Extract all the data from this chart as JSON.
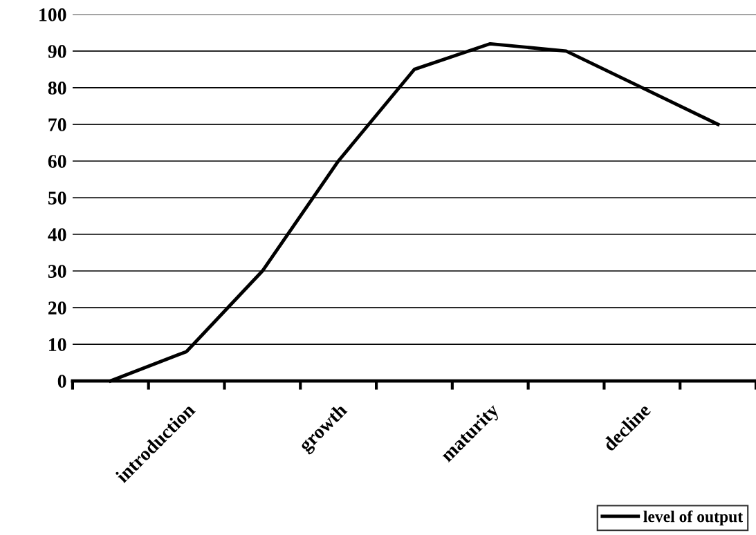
{
  "chart_data": {
    "type": "line",
    "categories": [
      null,
      "introduction",
      null,
      "growth",
      null,
      "maturity",
      null,
      "decline",
      null
    ],
    "series": [
      {
        "name": "level of output",
        "color": "#000000",
        "values": [
          0,
          8,
          30,
          60,
          85,
          92,
          90,
          80,
          70
        ]
      }
    ],
    "ylim": [
      0,
      100
    ],
    "yticks": [
      0,
      10,
      20,
      30,
      40,
      50,
      60,
      70,
      80,
      90,
      100
    ],
    "grid": "y",
    "legend": "bottom right",
    "marker": "none",
    "line_style": "solid"
  }
}
